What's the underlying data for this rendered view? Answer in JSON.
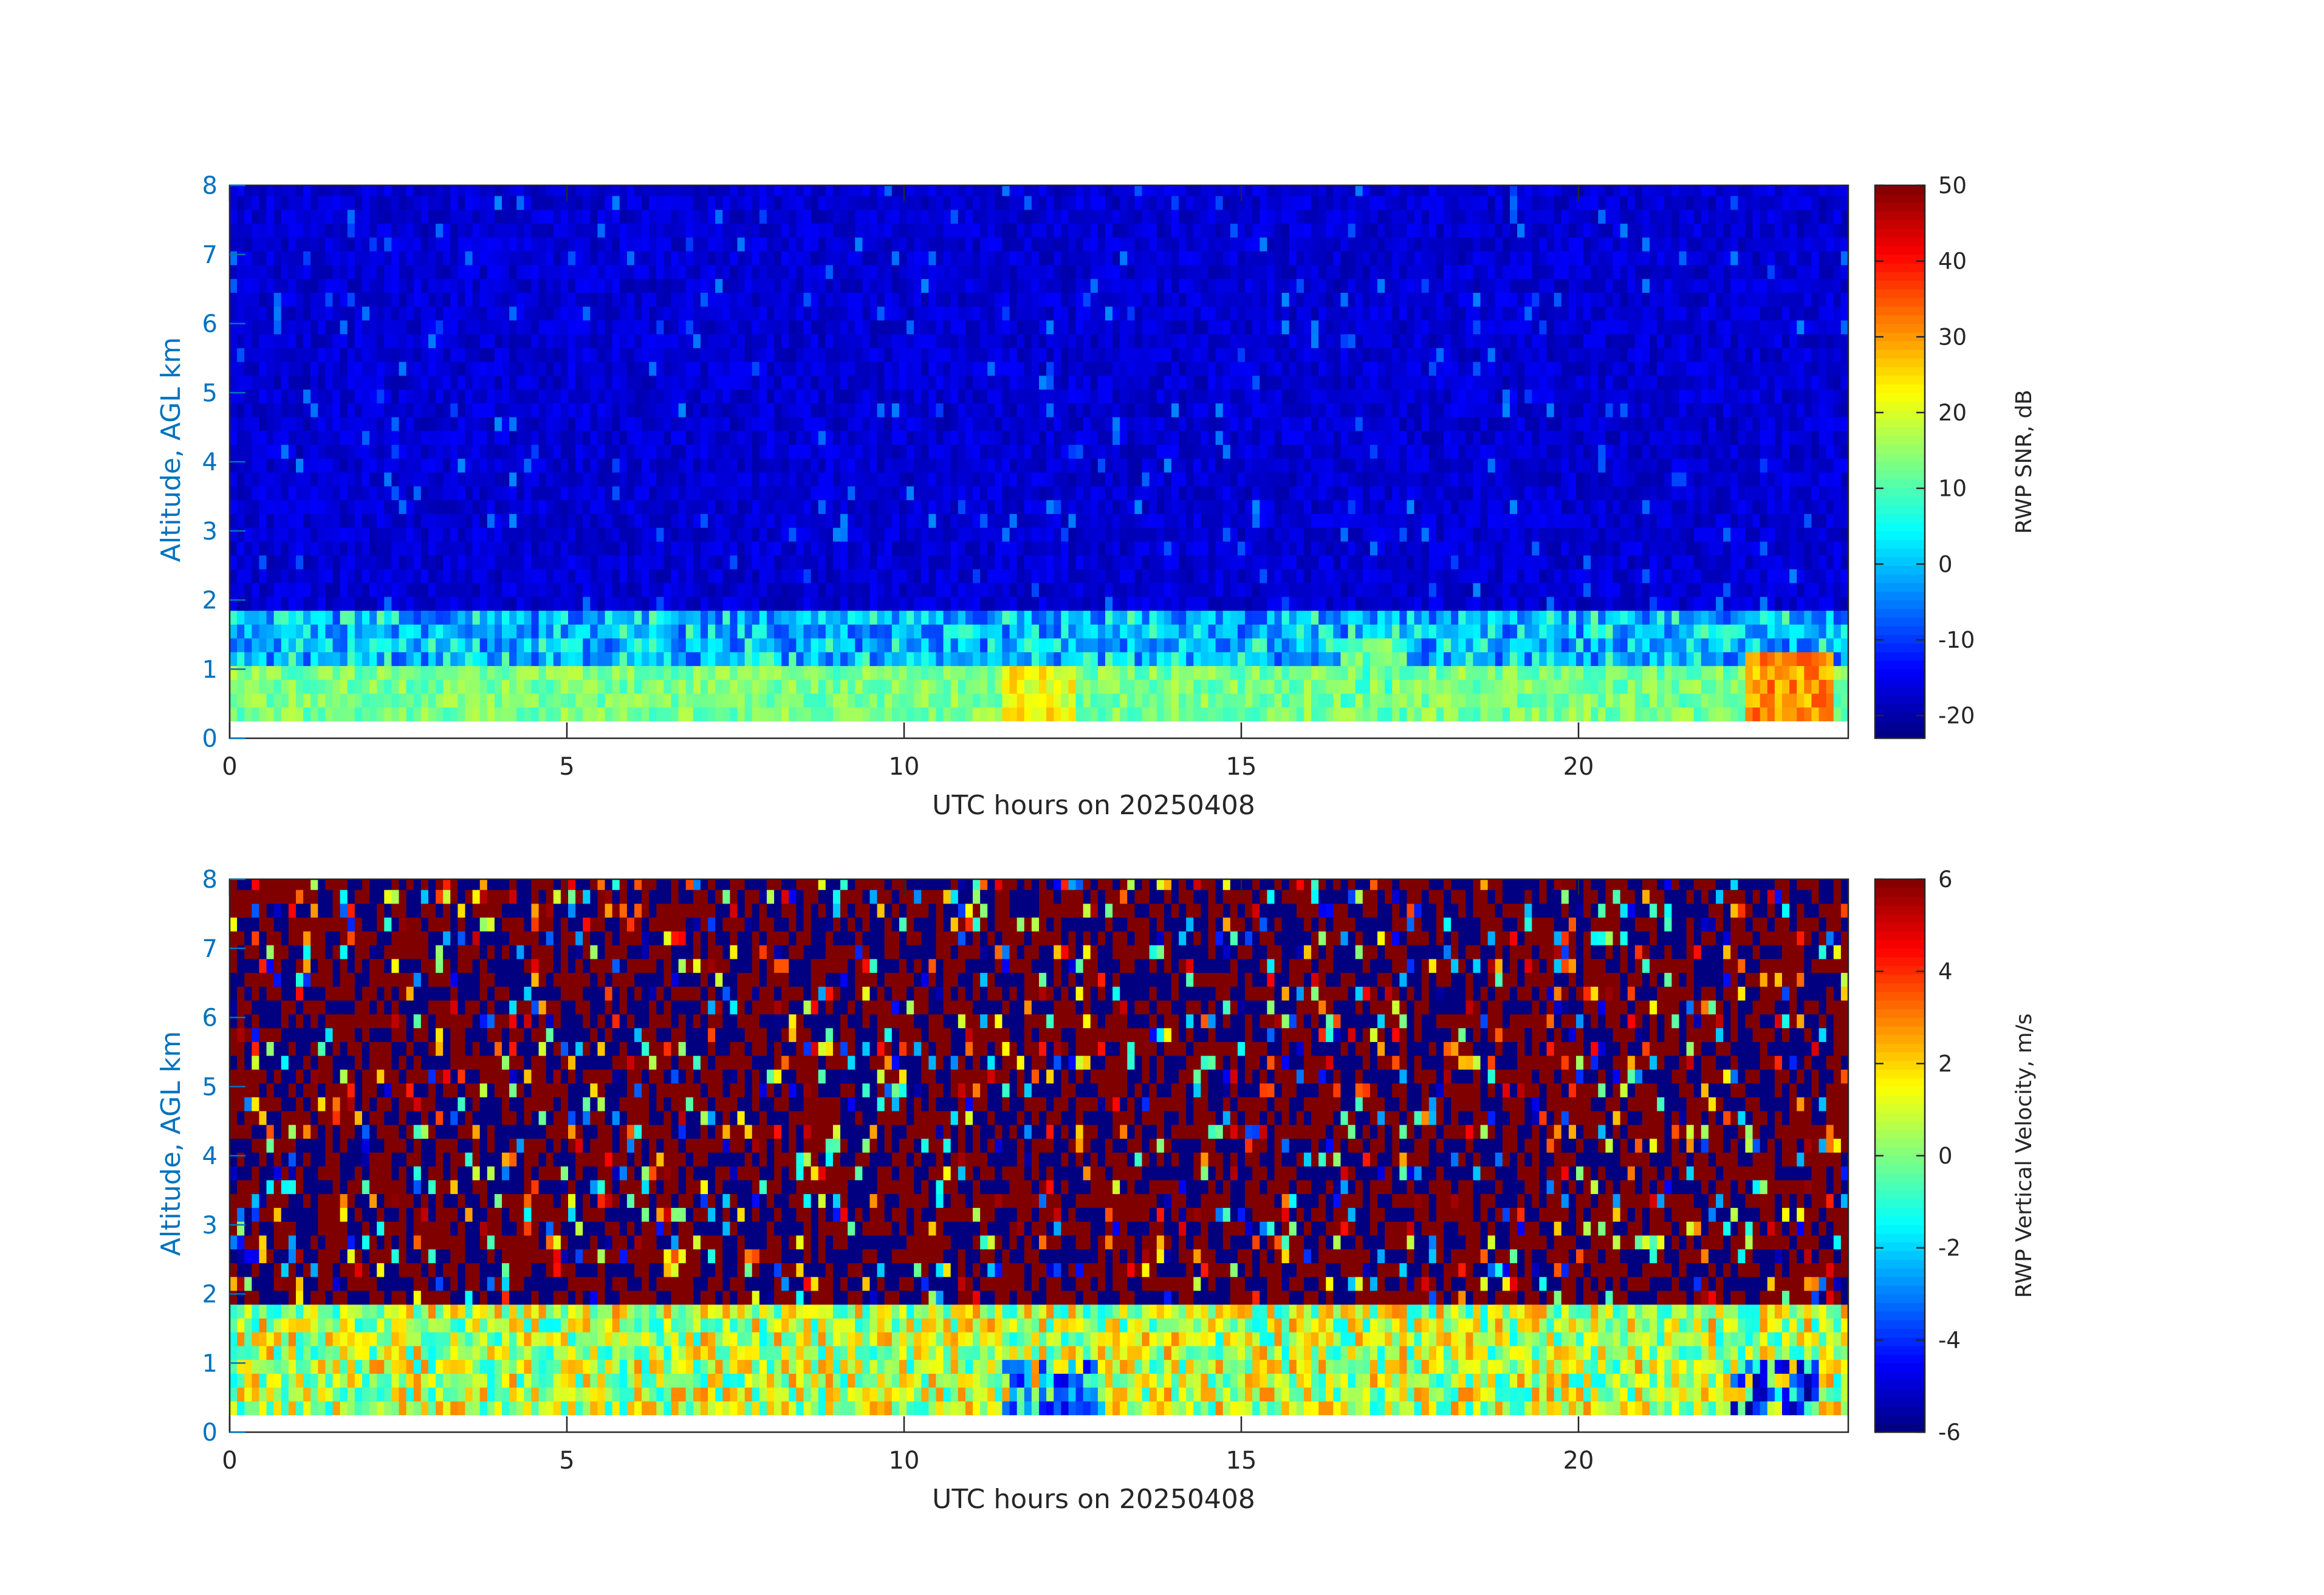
{
  "chart_data": [
    {
      "type": "heatmap",
      "panel": "top",
      "xlabel": "UTC hours on 20250408",
      "ylabel": "Altitude, AGL km",
      "colorbar_label": "RWP SNR, dB",
      "colormap": "jet",
      "xlim": [
        0,
        24
      ],
      "ylim": [
        0,
        8
      ],
      "clim": [
        -23,
        50
      ],
      "x_ticks": [
        0,
        5,
        10,
        15,
        20
      ],
      "y_ticks": [
        0,
        1,
        2,
        3,
        4,
        5,
        6,
        7,
        8
      ],
      "colorbar_ticks": [
        -20,
        -10,
        0,
        10,
        20,
        30,
        40,
        50
      ],
      "data_altitude_range_km": [
        0.25,
        8.0
      ],
      "layers": [
        {
          "altitude_km": [
            0.25,
            1.0
          ],
          "typical_value": 10
        },
        {
          "altitude_km": [
            1.0,
            1.8
          ],
          "typical_value": -3
        },
        {
          "altitude_km": [
            1.8,
            8.0
          ],
          "typical_value": -15
        }
      ],
      "notable_features": [
        {
          "hours": [
            11.5,
            12.5
          ],
          "altitude_km": [
            0.25,
            1.0
          ],
          "value": 22
        },
        {
          "hours": [
            16.5,
            17.5
          ],
          "altitude_km": [
            0.25,
            1.5
          ],
          "value": 12
        },
        {
          "hours": [
            22.5,
            23.8
          ],
          "altitude_km": [
            0.25,
            1.2
          ],
          "value": 30
        }
      ]
    },
    {
      "type": "heatmap",
      "panel": "bottom",
      "xlabel": "UTC hours on 20250408",
      "ylabel": "Altitude, AGL km",
      "colorbar_label": "RWP Vertical Velocity, m/s",
      "colormap": "jet",
      "xlim": [
        0,
        24
      ],
      "ylim": [
        0,
        8
      ],
      "clim": [
        -6,
        6
      ],
      "x_ticks": [
        0,
        5,
        10,
        15,
        20
      ],
      "y_ticks": [
        0,
        1,
        2,
        3,
        4,
        5,
        6,
        7,
        8
      ],
      "colorbar_ticks": [
        -6,
        -4,
        -2,
        0,
        2,
        4,
        6
      ],
      "data_altitude_range_km": [
        0.25,
        8.0
      ],
      "layers": [
        {
          "altitude_km": [
            0.25,
            1.8
          ],
          "typical_value": 0.5
        },
        {
          "altitude_km": [
            1.8,
            8.0
          ],
          "typical_value": "noise, ±6"
        }
      ],
      "notable_features": [
        {
          "hours": [
            11.5,
            13.0
          ],
          "altitude_km": [
            0.25,
            1.0
          ],
          "value": -3
        },
        {
          "hours": [
            22.3,
            23.6
          ],
          "altitude_km": [
            0.25,
            1.0
          ],
          "value": -4
        }
      ]
    }
  ]
}
